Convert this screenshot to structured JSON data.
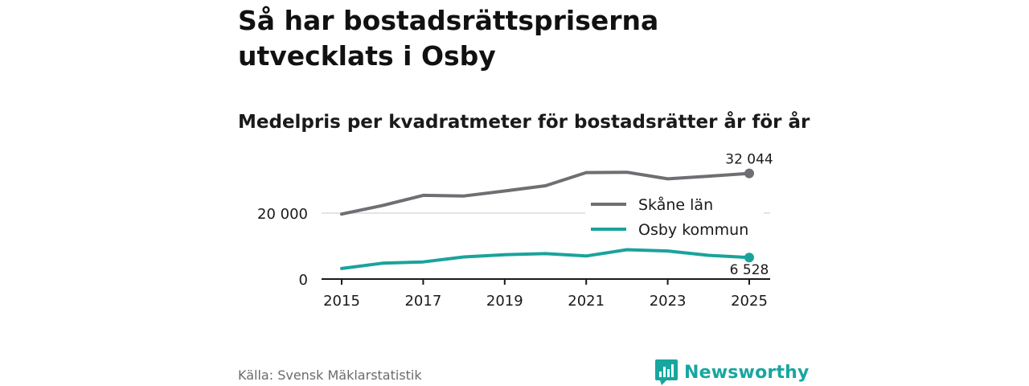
{
  "title": "Så har bostadsrättspriserna utvecklats i Osby",
  "subtitle": "Medelpris per kvadratmeter för bostadsrätter år för år",
  "source": "Källa: Svensk Mäklarstatistik",
  "brand": {
    "name": "Newsworthy",
    "color": "#18a6a0"
  },
  "chart_data": {
    "type": "line",
    "x": [
      2015,
      2016,
      2017,
      2018,
      2019,
      2020,
      2021,
      2022,
      2023,
      2024,
      2025
    ],
    "xticks": [
      2015,
      2017,
      2019,
      2021,
      2023,
      2025
    ],
    "xtick_labels": [
      "2015",
      "2017",
      "2019",
      "2021",
      "2023",
      "2025"
    ],
    "ylim": [
      0,
      36000
    ],
    "yticks": [
      0,
      20000
    ],
    "ytick_labels": [
      "0",
      "20 000"
    ],
    "gridlines": [
      20000
    ],
    "legend_position": "right",
    "series": [
      {
        "name": "Skåne län",
        "color": "#6e6e73",
        "values": [
          19700,
          22300,
          25400,
          25200,
          26700,
          28300,
          32300,
          32400,
          30400,
          31200,
          32044
        ],
        "end_label": "32 044"
      },
      {
        "name": "Osby kommun",
        "color": "#1aa39c",
        "values": [
          3200,
          4800,
          5200,
          6700,
          7400,
          7700,
          7000,
          8900,
          8500,
          7200,
          6528
        ],
        "end_label": "6 528"
      }
    ]
  }
}
